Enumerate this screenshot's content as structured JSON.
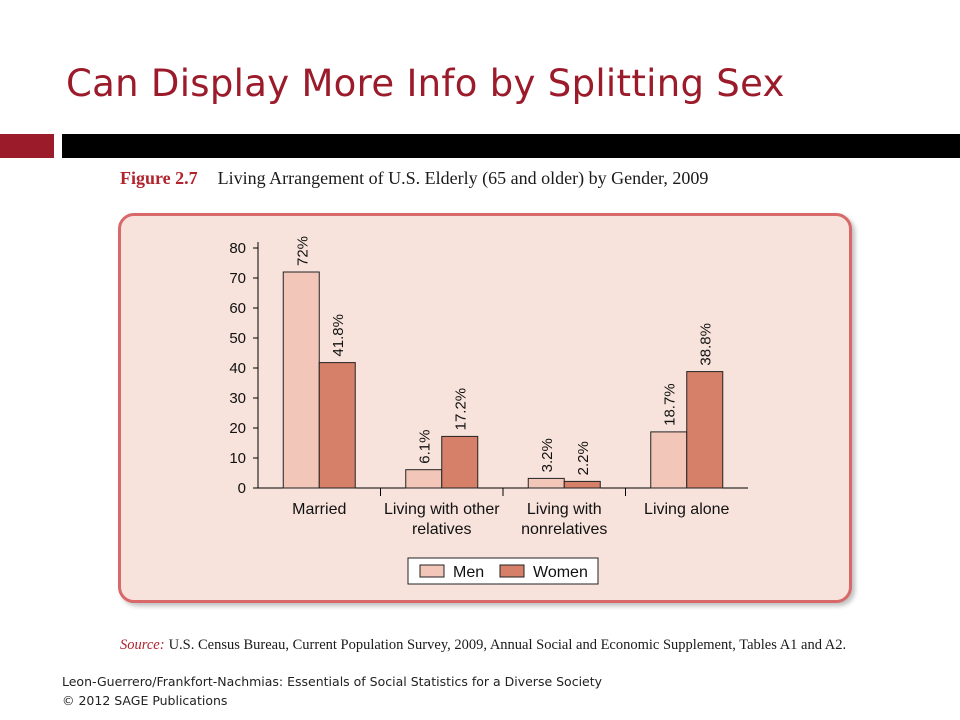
{
  "slide": {
    "title": "Can Display More Info by Splitting Sex",
    "figure_number": "Figure 2.7",
    "figure_caption": "Living Arrangement of U.S. Elderly (65 and older) by Gender, 2009",
    "source_label": "Source:",
    "source_text": "U.S. Census Bureau, Current Population Survey, 2009, Annual Social and Economic Supplement, Tables A1 and A2.",
    "footer_line1": "Leon-Guerrero/Frankfort-Nachmias: Essentials of Social Statistics for a Diverse Society",
    "footer_line2": "© 2012 SAGE Publications",
    "colors": {
      "accent": "#9b1b2a",
      "rule": "#000000"
    }
  },
  "chart_data": {
    "type": "bar",
    "categories": [
      [
        "Married"
      ],
      [
        "Living with other",
        "relatives"
      ],
      [
        "Living with",
        "nonrelatives"
      ],
      [
        "Living alone"
      ]
    ],
    "series": [
      {
        "name": "Men",
        "values": [
          72,
          6.1,
          3.2,
          18.7
        ],
        "labels": [
          "72%",
          "6.1%",
          "3.2%",
          "18.7%"
        ],
        "color": "#f2c7b9"
      },
      {
        "name": "Women",
        "values": [
          41.8,
          17.2,
          2.2,
          38.8
        ],
        "labels": [
          "41.8%",
          "17.2%",
          "2.2%",
          "38.8%"
        ],
        "color": "#d6806a"
      }
    ],
    "ylim": [
      0,
      80
    ],
    "yticks": [
      0,
      10,
      20,
      30,
      40,
      50,
      60,
      70,
      80
    ],
    "grid": false,
    "legend_position": "bottom",
    "colors": {
      "panel_background": "#f7e3dc",
      "panel_border": "#d9686a"
    }
  }
}
